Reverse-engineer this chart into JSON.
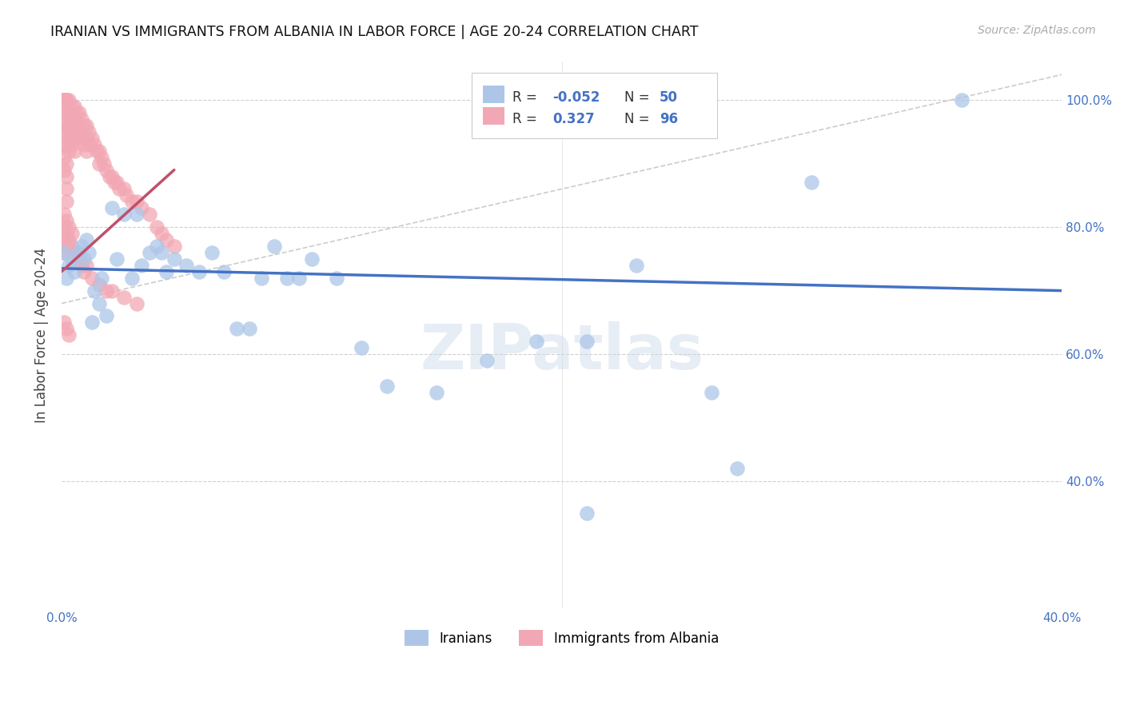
{
  "title": "IRANIAN VS IMMIGRANTS FROM ALBANIA IN LABOR FORCE | AGE 20-24 CORRELATION CHART",
  "source": "Source: ZipAtlas.com",
  "ylabel": "In Labor Force | Age 20-24",
  "xlim": [
    0.0,
    0.4
  ],
  "ylim": [
    0.2,
    1.06
  ],
  "ytick_positions": [
    0.4,
    0.6,
    0.8,
    1.0
  ],
  "ytick_labels": [
    "40.0%",
    "60.0%",
    "80.0%",
    "100.0%"
  ],
  "xtick_positions": [
    0.0,
    0.05,
    0.1,
    0.15,
    0.2,
    0.25,
    0.3,
    0.35,
    0.4
  ],
  "xtick_labels": [
    "0.0%",
    "",
    "",
    "",
    "",
    "",
    "",
    "",
    "40.0%"
  ],
  "watermark": "ZIPatlas",
  "iranians_color": "#adc6e8",
  "albania_color": "#f2a8b4",
  "trend_iranians_color": "#4472c4",
  "trend_albania_color": "#c0506a",
  "diagonal_color": "#cccccc",
  "background_color": "#ffffff",
  "grid_color": "#d0d0d0",
  "axis_label_color": "#4472c4",
  "iranians_x": [
    0.001,
    0.002,
    0.003,
    0.004,
    0.005,
    0.007,
    0.008,
    0.009,
    0.01,
    0.011,
    0.012,
    0.013,
    0.015,
    0.016,
    0.018,
    0.02,
    0.022,
    0.025,
    0.028,
    0.03,
    0.032,
    0.035,
    0.038,
    0.04,
    0.042,
    0.045,
    0.05,
    0.055,
    0.06,
    0.065,
    0.07,
    0.075,
    0.08,
    0.085,
    0.09,
    0.095,
    0.1,
    0.11,
    0.12,
    0.13,
    0.15,
    0.17,
    0.19,
    0.21,
    0.23,
    0.26,
    0.3,
    0.36,
    0.21,
    0.27
  ],
  "iranians_y": [
    0.76,
    0.72,
    0.74,
    0.75,
    0.73,
    0.76,
    0.77,
    0.75,
    0.78,
    0.76,
    0.65,
    0.7,
    0.68,
    0.72,
    0.66,
    0.83,
    0.75,
    0.82,
    0.72,
    0.82,
    0.74,
    0.76,
    0.77,
    0.76,
    0.73,
    0.75,
    0.74,
    0.73,
    0.76,
    0.73,
    0.64,
    0.64,
    0.72,
    0.77,
    0.72,
    0.72,
    0.75,
    0.72,
    0.61,
    0.55,
    0.54,
    0.59,
    0.62,
    0.62,
    0.74,
    0.54,
    0.87,
    1.0,
    0.35,
    0.42
  ],
  "albania_x": [
    0.001,
    0.001,
    0.001,
    0.001,
    0.001,
    0.001,
    0.001,
    0.001,
    0.001,
    0.001,
    0.002,
    0.002,
    0.002,
    0.002,
    0.002,
    0.002,
    0.002,
    0.002,
    0.002,
    0.002,
    0.003,
    0.003,
    0.003,
    0.003,
    0.003,
    0.004,
    0.004,
    0.004,
    0.004,
    0.005,
    0.005,
    0.005,
    0.005,
    0.006,
    0.006,
    0.006,
    0.007,
    0.007,
    0.008,
    0.008,
    0.009,
    0.009,
    0.01,
    0.01,
    0.01,
    0.011,
    0.011,
    0.012,
    0.013,
    0.014,
    0.015,
    0.015,
    0.016,
    0.017,
    0.018,
    0.019,
    0.02,
    0.021,
    0.022,
    0.023,
    0.025,
    0.026,
    0.028,
    0.03,
    0.032,
    0.035,
    0.038,
    0.04,
    0.042,
    0.045,
    0.001,
    0.001,
    0.001,
    0.001,
    0.002,
    0.002,
    0.002,
    0.003,
    0.003,
    0.004,
    0.004,
    0.005,
    0.006,
    0.007,
    0.008,
    0.009,
    0.01,
    0.012,
    0.015,
    0.018,
    0.02,
    0.025,
    0.03,
    0.001,
    0.002,
    0.003
  ],
  "albania_y": [
    1.0,
    1.0,
    1.0,
    1.0,
    0.98,
    0.96,
    0.95,
    0.93,
    0.91,
    0.89,
    1.0,
    1.0,
    0.98,
    0.96,
    0.95,
    0.93,
    0.9,
    0.88,
    0.86,
    0.84,
    1.0,
    0.98,
    0.96,
    0.94,
    0.92,
    0.99,
    0.97,
    0.95,
    0.93,
    0.99,
    0.97,
    0.94,
    0.92,
    0.98,
    0.96,
    0.94,
    0.98,
    0.95,
    0.97,
    0.94,
    0.96,
    0.93,
    0.96,
    0.94,
    0.92,
    0.95,
    0.93,
    0.94,
    0.93,
    0.92,
    0.92,
    0.9,
    0.91,
    0.9,
    0.89,
    0.88,
    0.88,
    0.87,
    0.87,
    0.86,
    0.86,
    0.85,
    0.84,
    0.84,
    0.83,
    0.82,
    0.8,
    0.79,
    0.78,
    0.77,
    0.82,
    0.8,
    0.78,
    0.76,
    0.81,
    0.79,
    0.77,
    0.8,
    0.78,
    0.79,
    0.77,
    0.76,
    0.76,
    0.75,
    0.74,
    0.73,
    0.74,
    0.72,
    0.71,
    0.7,
    0.7,
    0.69,
    0.68,
    0.65,
    0.64,
    0.63
  ],
  "iran_trend_x": [
    0.0,
    0.4
  ],
  "iran_trend_y": [
    0.735,
    0.7
  ],
  "alba_trend_x": [
    0.0,
    0.045
  ],
  "alba_trend_y": [
    0.73,
    0.89
  ]
}
